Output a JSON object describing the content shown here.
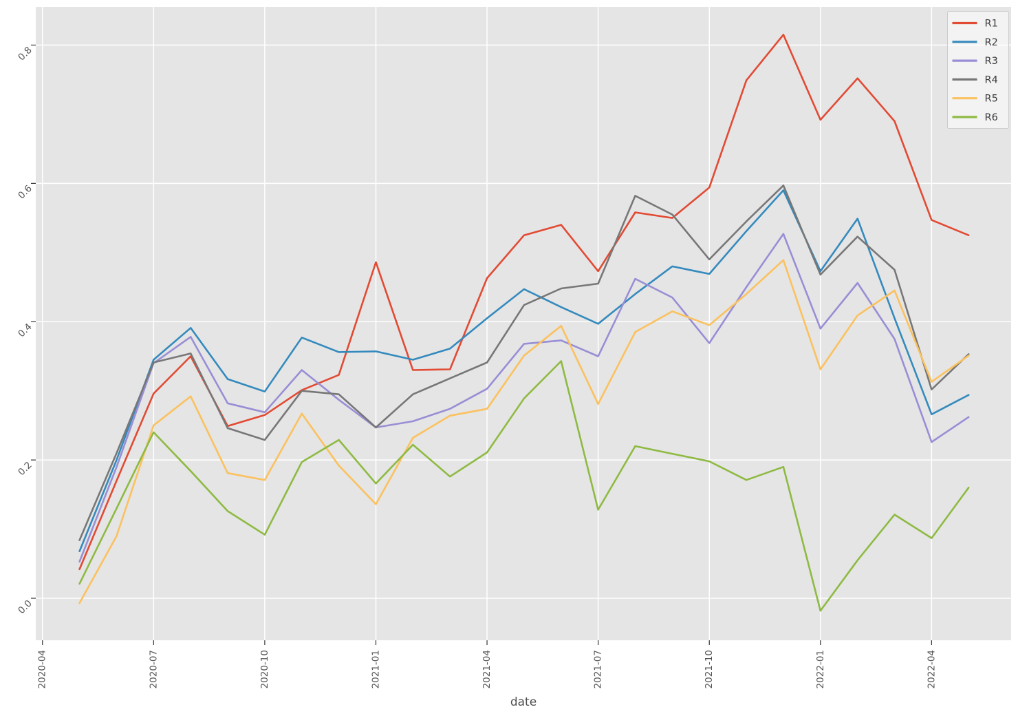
{
  "chart_data": {
    "type": "line",
    "xlabel": "date",
    "ylabel": "",
    "grid": true,
    "legend_position": "upper right",
    "plot_background": "#e5e5e5",
    "grid_color": "#ffffff",
    "tick_label_color": "#555555",
    "axis_label_color": "#4d4d4d",
    "legend_text_color": "#3c3c3c",
    "ylim": [
      -0.06,
      0.86
    ],
    "x_tick_labels": [
      "2020-04",
      "2020-07",
      "2020-10",
      "2021-01",
      "2021-04",
      "2021-07",
      "2021-10",
      "2022-01",
      "2022-04"
    ],
    "y_tick_labels": [
      "0.0",
      "0.2",
      "0.4",
      "0.6",
      "0.8"
    ],
    "x": [
      "2020-05",
      "2020-06",
      "2020-07",
      "2020-08",
      "2020-09",
      "2020-10",
      "2020-11",
      "2020-12",
      "2021-01",
      "2021-02",
      "2021-03",
      "2021-04",
      "2021-05",
      "2021-06",
      "2021-07",
      "2021-08",
      "2021-09",
      "2021-10",
      "2021-11",
      "2021-12",
      "2022-01",
      "2022-02",
      "2022-03",
      "2022-04",
      "2022-05"
    ],
    "series": [
      {
        "name": "R1",
        "color": "#E24A33",
        "values": [
          0.042,
          0.17,
          0.296,
          0.35,
          0.249,
          0.265,
          0.301,
          0.323,
          0.486,
          0.33,
          0.331,
          0.463,
          0.525,
          0.54,
          0.473,
          0.558,
          0.55,
          0.594,
          0.749,
          0.815,
          0.692,
          0.752,
          0.69,
          0.547,
          0.525
        ]
      },
      {
        "name": "R2",
        "color": "#348ABD",
        "values": [
          0.068,
          0.2,
          0.345,
          0.391,
          0.317,
          0.299,
          0.377,
          0.356,
          0.357,
          0.345,
          0.361,
          0.405,
          0.447,
          0.421,
          0.397,
          0.44,
          0.48,
          0.469,
          0.531,
          0.59,
          0.473,
          0.549,
          0.405,
          0.266,
          0.294
        ]
      },
      {
        "name": "R3",
        "color": "#988ED5",
        "values": [
          0.053,
          0.19,
          0.34,
          0.378,
          0.282,
          0.269,
          0.33,
          0.287,
          0.247,
          0.256,
          0.274,
          0.303,
          0.368,
          0.373,
          0.35,
          0.462,
          0.435,
          0.369,
          0.45,
          0.527,
          0.39,
          0.456,
          0.375,
          0.226,
          0.262
        ]
      },
      {
        "name": "R4",
        "color": "#777777",
        "values": [
          0.084,
          0.21,
          0.341,
          0.354,
          0.246,
          0.229,
          0.3,
          0.295,
          0.247,
          0.295,
          0.318,
          0.341,
          0.424,
          0.448,
          0.455,
          0.582,
          0.555,
          0.49,
          0.545,
          0.597,
          0.468,
          0.523,
          0.475,
          0.302,
          0.353
        ]
      },
      {
        "name": "R5",
        "color": "#FBC15E",
        "values": [
          -0.007,
          0.09,
          0.25,
          0.292,
          0.181,
          0.171,
          0.267,
          0.192,
          0.136,
          0.232,
          0.264,
          0.274,
          0.351,
          0.394,
          0.281,
          0.385,
          0.415,
          0.395,
          0.44,
          0.489,
          0.331,
          0.409,
          0.445,
          0.313,
          0.351
        ]
      },
      {
        "name": "R6",
        "color": "#8EBA42",
        "values": [
          0.021,
          0.13,
          0.24,
          0.184,
          0.126,
          0.092,
          0.197,
          0.229,
          0.166,
          0.222,
          0.176,
          0.211,
          0.289,
          0.343,
          0.128,
          0.22,
          0.209,
          0.198,
          0.171,
          0.19,
          -0.018,
          0.055,
          0.121,
          0.087,
          0.16
        ]
      }
    ]
  }
}
